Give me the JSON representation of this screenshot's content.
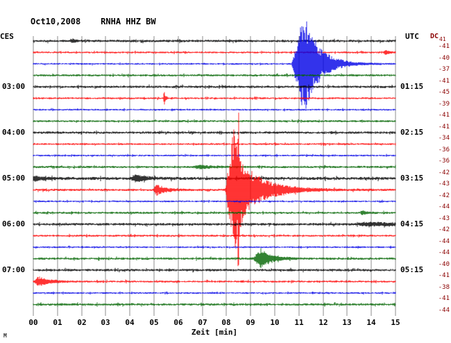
{
  "header": {
    "title": "Oct10,2008    RNHA HHZ BW"
  },
  "footer": {
    "logo_glyph": "M"
  },
  "axes": {
    "left_timezone_label": "CES",
    "right_timezone_label": "UTC",
    "dc_header": "DC",
    "dc_header_value": "41",
    "x_ticks": [
      "00",
      "01",
      "02",
      "03",
      "04",
      "05",
      "06",
      "07",
      "08",
      "09",
      "10",
      "11",
      "12",
      "13",
      "14",
      "15"
    ],
    "left_time_labels": [
      {
        "row": 4,
        "label": "03:00"
      },
      {
        "row": 8,
        "label": "04:00"
      },
      {
        "row": 12,
        "label": "05:00"
      },
      {
        "row": 16,
        "label": "06:00"
      },
      {
        "row": 20,
        "label": "07:00"
      }
    ],
    "right_time_labels": [
      {
        "row": 4,
        "label": "01:15"
      },
      {
        "row": 8,
        "label": "02:15"
      },
      {
        "row": 12,
        "label": "03:15"
      },
      {
        "row": 16,
        "label": "04:15"
      },
      {
        "row": 20,
        "label": "05:15"
      }
    ],
    "dc_values": [
      "-41",
      "-40",
      "-37",
      "-41",
      "-45",
      "-39",
      "-41",
      "-41",
      "-34",
      "-36",
      "-36",
      "-42",
      "-43",
      "-42",
      "-44",
      "-43",
      "-42",
      "-44",
      "-44",
      "-40",
      "-41",
      "-38",
      "-41",
      "-44"
    ]
  },
  "chart_data": {
    "type": "line",
    "subtype": "helicorder-seismogram",
    "title": "Oct10,2008 RNHA HHZ BW",
    "date": "Oct10,2008",
    "station": "RNHA HHZ BW",
    "xlabel": "Zeit [min]",
    "x_range_minutes": [
      0,
      15
    ],
    "minutes_per_row": 15,
    "rows": 24,
    "grid_on": true,
    "grid_color": "#8c8c8c",
    "dc_value_color": "#8b0000",
    "palette": {
      "black": "#000000",
      "red": "#ff0000",
      "blue": "#0000e6",
      "green": "#006400"
    },
    "traces": [
      {
        "row": 0,
        "color": "black",
        "noise": 1.8,
        "events": [
          {
            "t0": 1.55,
            "rise": 0.05,
            "decay": 0.15,
            "amp": 3
          }
        ]
      },
      {
        "row": 1,
        "color": "red",
        "noise": 1.4,
        "events": [
          {
            "t0": 14.5,
            "rise": 0.08,
            "decay": 0.15,
            "amp": 3.5
          }
        ]
      },
      {
        "row": 2,
        "color": "blue",
        "noise": 1.3,
        "events": [
          {
            "t0": 10.7,
            "rise": 0.5,
            "decay": 0.6,
            "amp": 75,
            "desc": "large event spindle at ~11.2 min"
          },
          {
            "t0": 11.1,
            "rise": 0.1,
            "decay": 0.12,
            "amp": 88,
            "desc": "peak spike"
          }
        ]
      },
      {
        "row": 3,
        "color": "green",
        "noise": 1.6,
        "events": []
      },
      {
        "row": 4,
        "color": "black",
        "noise": 1.8,
        "events": []
      },
      {
        "row": 5,
        "color": "red",
        "noise": 1.4,
        "events": [
          {
            "t0": 5.38,
            "rise": 0.04,
            "decay": 0.06,
            "amp": 11,
            "desc": "glitch spike"
          }
        ]
      },
      {
        "row": 6,
        "color": "blue",
        "noise": 1.3,
        "events": []
      },
      {
        "row": 7,
        "color": "green",
        "noise": 1.6,
        "events": []
      },
      {
        "row": 8,
        "color": "black",
        "noise": 1.8,
        "events": []
      },
      {
        "row": 9,
        "color": "red",
        "noise": 1.4,
        "events": []
      },
      {
        "row": 10,
        "color": "blue",
        "noise": 1.3,
        "events": []
      },
      {
        "row": 11,
        "color": "green",
        "noise": 1.7,
        "events": [
          {
            "t0": 6.6,
            "rise": 0.3,
            "decay": 0.5,
            "amp": 2.5
          }
        ]
      },
      {
        "row": 12,
        "color": "black",
        "noise": 2.2,
        "events": [
          {
            "t0": -0.2,
            "rise": 0.1,
            "decay": 0.5,
            "amp": 4,
            "desc": "burst at left edge"
          },
          {
            "t0": 4.0,
            "rise": 0.25,
            "decay": 0.45,
            "amp": 5,
            "desc": "small burst"
          }
        ]
      },
      {
        "row": 13,
        "color": "red",
        "noise": 1.7,
        "events": [
          {
            "t0": 4.95,
            "rise": 0.15,
            "decay": 0.35,
            "amp": 8,
            "desc": "small burst"
          },
          {
            "t0": 7.95,
            "rise": 0.25,
            "decay": 0.95,
            "amp": 65,
            "desc": "local earthquake coda"
          },
          {
            "t0": 8.05,
            "rise": 0.3,
            "decay": 0.35,
            "amp": 115,
            "desc": "local earthquake dense core at ~8.4 min"
          },
          {
            "t0": 8.42,
            "rise": 0.06,
            "decay": 0.1,
            "amp": 150,
            "desc": "clipped peak spike"
          }
        ]
      },
      {
        "row": 14,
        "color": "blue",
        "noise": 1.3,
        "events": []
      },
      {
        "row": 15,
        "color": "green",
        "noise": 1.6,
        "events": [
          {
            "t0": 13.55,
            "rise": 0.06,
            "decay": 0.2,
            "amp": 3
          }
        ]
      },
      {
        "row": 16,
        "color": "black",
        "noise": 1.9,
        "events": [
          {
            "t0": 13.2,
            "rise": 0.6,
            "decay": 2.0,
            "amp": 2.2,
            "desc": "elevated noise right end"
          }
        ]
      },
      {
        "row": 17,
        "color": "red",
        "noise": 1.5,
        "events": []
      },
      {
        "row": 18,
        "color": "blue",
        "noise": 1.3,
        "events": []
      },
      {
        "row": 19,
        "color": "green",
        "noise": 1.7,
        "events": [
          {
            "t0": 9.1,
            "rise": 0.3,
            "decay": 0.45,
            "amp": 14,
            "desc": "small event at ~9.4 min"
          }
        ]
      },
      {
        "row": 20,
        "color": "black",
        "noise": 1.8,
        "events": []
      },
      {
        "row": 21,
        "color": "red",
        "noise": 1.5,
        "events": [
          {
            "t0": 0.05,
            "rise": 0.15,
            "decay": 0.45,
            "amp": 7,
            "desc": "burst at left edge"
          }
        ]
      },
      {
        "row": 22,
        "color": "blue",
        "noise": 1.3,
        "events": []
      },
      {
        "row": 23,
        "color": "green",
        "noise": 1.7,
        "events": []
      }
    ]
  }
}
